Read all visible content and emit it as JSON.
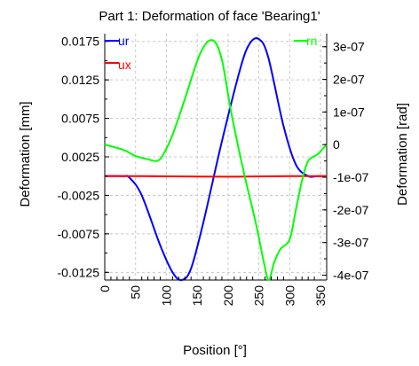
{
  "chart_data": {
    "type": "line",
    "title": "Part 1: Deformation of face 'Bearing1'",
    "xlabel": "Position [°]",
    "ylabel_left": "Deformation [mm]",
    "ylabel_right": "Deformation [rad]",
    "xlim": [
      0,
      360
    ],
    "ylim_left": [
      -0.0135,
      0.0185
    ],
    "ylim_right": [
      -4.15e-07,
      3.4e-07
    ],
    "grid": true,
    "legend": "top",
    "x_ticks": [
      "0",
      "50",
      "100",
      "150",
      "200",
      "250",
      "300",
      "350"
    ],
    "x_tick_values": [
      0,
      50,
      100,
      150,
      200,
      250,
      300,
      350
    ],
    "y_left_ticks": [
      "0.0175",
      "0.0125",
      "0.0075",
      "0.0025",
      "-0.0025",
      "-0.0075",
      "-0.0125"
    ],
    "y_left_tick_values": [
      0.0175,
      0.0125,
      0.0075,
      0.0025,
      -0.0025,
      -0.0075,
      -0.0125
    ],
    "y_right_ticks": [
      "3e-07",
      "2e-07",
      "1e-07",
      "0",
      "-1e-07",
      "-2e-07",
      "-3e-07",
      "-4e-07"
    ],
    "y_right_tick_values": [
      3e-07,
      2e-07,
      1e-07,
      0,
      -1e-07,
      -2e-07,
      -3e-07,
      -4e-07
    ],
    "series": [
      {
        "name": "ur",
        "axis": "left",
        "color": "#0000ff",
        "x": [
          0,
          30,
          40,
          60,
          90,
          110,
          125,
          140,
          160,
          190,
          220,
          235,
          250,
          265,
          290,
          310,
          330,
          345,
          360
        ],
        "y": [
          0.0,
          0.0,
          -0.0002,
          -0.0025,
          -0.009,
          -0.0125,
          -0.0135,
          -0.012,
          -0.006,
          0.0045,
          0.014,
          0.0172,
          0.0178,
          0.0155,
          0.0065,
          0.0015,
          0.0,
          0.0,
          0.0
        ]
      },
      {
        "name": "ux",
        "axis": "left",
        "color": "#ff0000",
        "x": [
          0,
          60,
          130,
          200,
          240,
          300,
          360
        ],
        "y": [
          0.0,
          0.0,
          -5e-05,
          -8e-05,
          -5e-05,
          0.0,
          0.0
        ]
      },
      {
        "name": "rn",
        "axis": "right",
        "color": "#00ff00",
        "x": [
          0,
          20,
          35,
          50,
          70,
          85,
          95,
          110,
          130,
          155,
          175,
          190,
          205,
          225,
          245,
          258,
          266,
          275,
          285,
          300,
          310,
          320,
          330,
          345,
          355,
          360
        ],
        "y": [
          0.0,
          -1e-08,
          -2e-08,
          -3.5e-08,
          -4.5e-08,
          -5e-08,
          -3e-08,
          3e-08,
          1.4e-07,
          2.8e-07,
          3.2e-07,
          2.6e-07,
          1e-07,
          -8e-08,
          -2.4e-07,
          -3.6e-07,
          -4.15e-07,
          -3.6e-07,
          -3.2e-07,
          -2.9e-07,
          -2e-07,
          -1.1e-07,
          -5e-08,
          -3e-08,
          -1e-08,
          0.0
        ]
      }
    ]
  }
}
